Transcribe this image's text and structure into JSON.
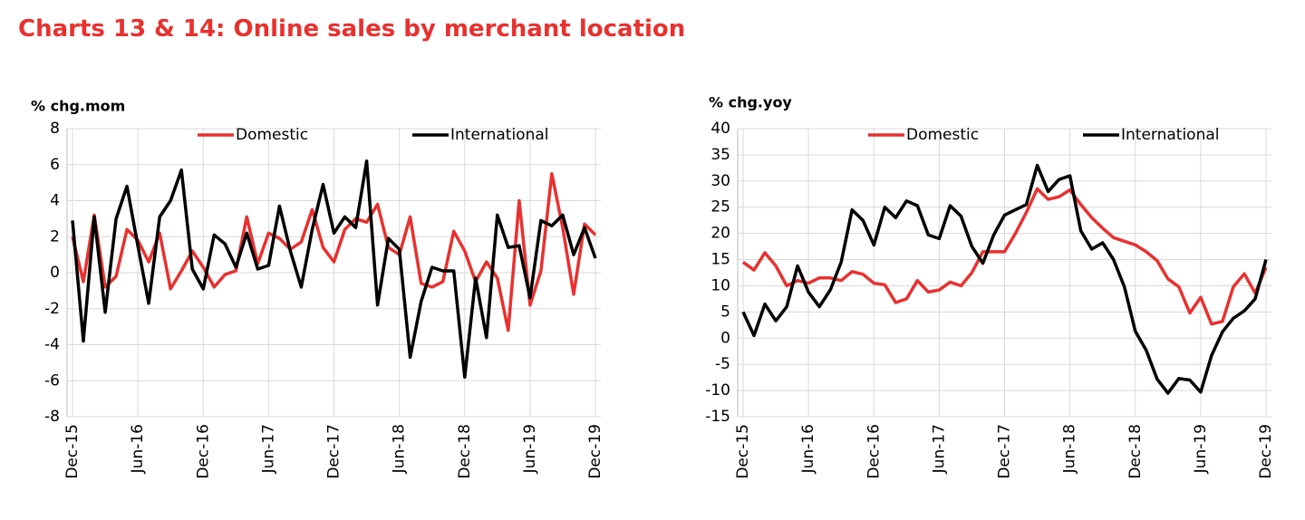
{
  "title": "Charts 13 & 14: Online sales by merchant location",
  "chart_data": [
    {
      "type": "line",
      "y_label": "% chg.mom",
      "grid": true,
      "legend": "top",
      "categories": [
        "Dec-15",
        null,
        null,
        null,
        null,
        null,
        "Jun-16",
        null,
        null,
        null,
        null,
        null,
        "Dec-16",
        null,
        null,
        null,
        null,
        null,
        "Jun-17",
        null,
        null,
        null,
        null,
        null,
        "Dec-17",
        null,
        null,
        null,
        null,
        null,
        "Jun-18",
        null,
        null,
        null,
        null,
        null,
        "Dec-18",
        null,
        null,
        null,
        null,
        null,
        "Jun-19",
        null,
        null,
        null,
        null,
        null,
        "Dec-19"
      ],
      "ylim": [
        -8,
        8
      ],
      "yticks": [
        -8,
        -6,
        -4,
        -2,
        0,
        2,
        4,
        6,
        8
      ],
      "series": [
        {
          "name": "Domestic",
          "color": "#e8312f",
          "values": [
            2.0,
            -0.5,
            3.2,
            -0.8,
            -0.2,
            2.4,
            1.8,
            0.6,
            2.2,
            -0.9,
            0.1,
            1.2,
            0.3,
            -0.8,
            -0.1,
            0.1,
            3.1,
            0.5,
            2.2,
            1.9,
            1.3,
            1.7,
            3.5,
            1.4,
            0.6,
            2.4,
            3.0,
            2.8,
            3.8,
            1.4,
            1.0,
            3.1,
            -0.6,
            -0.8,
            -0.5,
            2.3,
            1.2,
            -0.5,
            0.6,
            -0.3,
            -3.2,
            4.0,
            -1.8,
            0.1,
            5.5,
            2.5,
            -1.2,
            2.7,
            2.1
          ]
        },
        {
          "name": "International",
          "color": "#000000",
          "values": [
            2.9,
            -3.8,
            3.1,
            -2.2,
            3.0,
            4.8,
            1.5,
            -1.7,
            3.1,
            4.0,
            5.7,
            0.2,
            -0.9,
            2.1,
            1.6,
            0.3,
            2.2,
            0.2,
            0.4,
            3.7,
            1.2,
            -0.8,
            2.4,
            4.9,
            2.2,
            3.1,
            2.5,
            6.2,
            -1.8,
            1.9,
            1.3,
            -4.7,
            -1.6,
            0.3,
            0.1,
            0.1,
            -5.8,
            -0.3,
            -3.6,
            3.2,
            1.4,
            1.5,
            -1.4,
            2.9,
            2.6,
            3.2,
            1.0,
            2.5,
            0.8
          ]
        }
      ]
    },
    {
      "type": "line",
      "y_label": "% chg.yoy",
      "grid": true,
      "legend": "top",
      "categories": [
        "Dec-15",
        null,
        null,
        null,
        null,
        null,
        "Jun-16",
        null,
        null,
        null,
        null,
        null,
        "Dec-16",
        null,
        null,
        null,
        null,
        null,
        "Jun-17",
        null,
        null,
        null,
        null,
        null,
        "Dec-17",
        null,
        null,
        null,
        null,
        null,
        "Jun-18",
        null,
        null,
        null,
        null,
        null,
        "Dec-18",
        null,
        null,
        null,
        null,
        null,
        "Jun-19",
        null,
        null,
        null,
        null,
        null,
        "Dec-19"
      ],
      "ylim": [
        -15,
        40
      ],
      "yticks": [
        -15,
        -10,
        -5,
        0,
        5,
        10,
        15,
        20,
        25,
        30,
        35,
        40
      ],
      "series": [
        {
          "name": "Domestic",
          "color": "#e8312f",
          "values": [
            14.5,
            13,
            16.3,
            13.8,
            10,
            11,
            10.5,
            11.5,
            11.5,
            11,
            12.7,
            12.2,
            10.5,
            10.2,
            6.8,
            7.5,
            11,
            8.8,
            9.2,
            10.7,
            10,
            12.5,
            16.5,
            16.5,
            16.5,
            20,
            24,
            28.5,
            26.5,
            27,
            28.3,
            25.5,
            23,
            21,
            19.2,
            18.5,
            17.8,
            16.5,
            14.8,
            11.3,
            9.8,
            4.8,
            7.8,
            2.7,
            3.2,
            9.8,
            12.3,
            8.6,
            13.5
          ]
        },
        {
          "name": "International",
          "color": "#000000",
          "values": [
            5,
            0.5,
            6.5,
            3.3,
            6,
            13.8,
            8.8,
            6,
            9.2,
            14.5,
            24.5,
            22.5,
            17.8,
            25,
            23,
            26.2,
            25.3,
            19.7,
            19,
            25.3,
            23.3,
            17.5,
            14.3,
            19.7,
            23.5,
            24.5,
            25.5,
            33,
            28,
            30.3,
            31,
            20.5,
            17,
            18.2,
            15,
            9.8,
            1.3,
            -2.3,
            -7.8,
            -10.5,
            -7.7,
            -8,
            -10.3,
            -3.3,
            1.2,
            3.8,
            5.2,
            7.5,
            15
          ]
        }
      ]
    }
  ]
}
